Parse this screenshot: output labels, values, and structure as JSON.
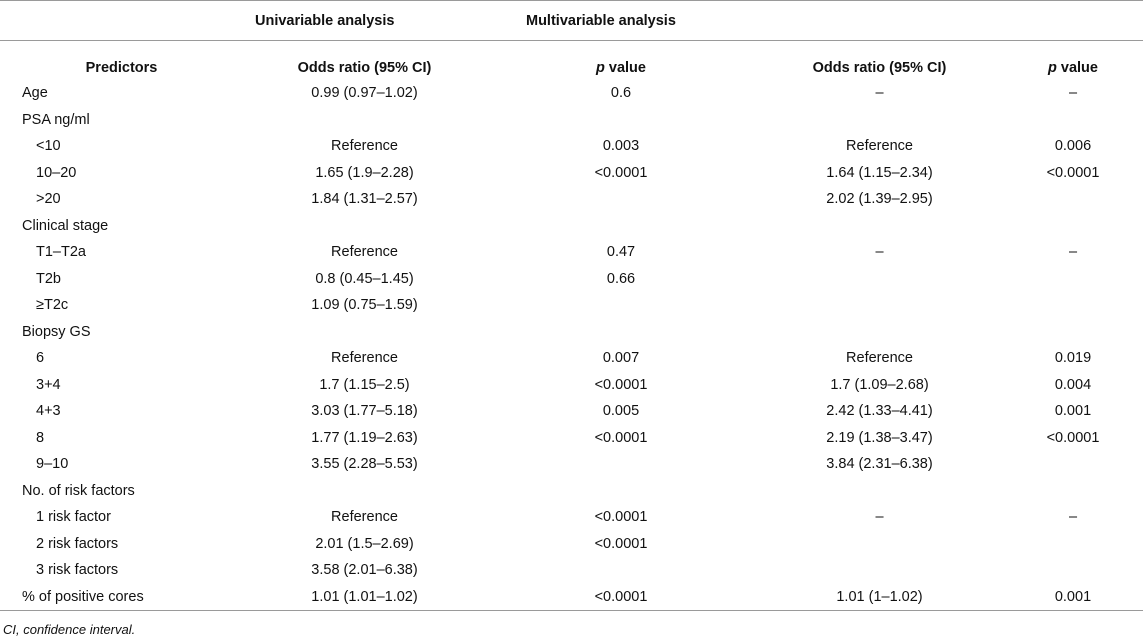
{
  "header": {
    "group1": "Univariable analysis",
    "group2": "Multivariable analysis",
    "col0": "Predictors",
    "col1": "Odds ratio (95% CI)",
    "col2_p": "p",
    "col2_rest": " value",
    "col3": "Odds ratio (95% CI)",
    "col4_p": "p",
    "col4_rest": " value"
  },
  "rows": [
    {
      "predictor": "Age",
      "indent": false,
      "uni_or": "0.99 (0.97–1.02)",
      "uni_p": "0.6",
      "multi_or": "–",
      "multi_p": "–"
    },
    {
      "predictor": "PSA ng/ml",
      "indent": false,
      "uni_or": "",
      "uni_p": "",
      "multi_or": "",
      "multi_p": ""
    },
    {
      "predictor": "<10",
      "indent": true,
      "uni_or": "Reference",
      "uni_p": "0.003",
      "multi_or": "Reference",
      "multi_p": "0.006"
    },
    {
      "predictor": "10–20",
      "indent": true,
      "uni_or": "1.65 (1.9–2.28)",
      "uni_p": "<0.0001",
      "multi_or": "1.64 (1.15–2.34)",
      "multi_p": "<0.0001"
    },
    {
      "predictor": ">20",
      "indent": true,
      "uni_or": "1.84 (1.31–2.57)",
      "uni_p": "",
      "multi_or": "2.02 (1.39–2.95)",
      "multi_p": ""
    },
    {
      "predictor": "Clinical stage",
      "indent": false,
      "uni_or": "",
      "uni_p": "",
      "multi_or": "",
      "multi_p": ""
    },
    {
      "predictor": "T1–T2a",
      "indent": true,
      "uni_or": "Reference",
      "uni_p": "0.47",
      "multi_or": "–",
      "multi_p": "–"
    },
    {
      "predictor": "T2b",
      "indent": true,
      "uni_or": "0.8 (0.45–1.45)",
      "uni_p": "0.66",
      "multi_or": "",
      "multi_p": ""
    },
    {
      "predictor": "≥T2c",
      "indent": true,
      "uni_or": "1.09 (0.75–1.59)",
      "uni_p": "",
      "multi_or": "",
      "multi_p": ""
    },
    {
      "predictor": "Biopsy GS",
      "indent": false,
      "uni_or": "",
      "uni_p": "",
      "multi_or": "",
      "multi_p": ""
    },
    {
      "predictor": "6",
      "indent": true,
      "uni_or": "Reference",
      "uni_p": "0.007",
      "multi_or": "Reference",
      "multi_p": "0.019"
    },
    {
      "predictor": "3+4",
      "indent": true,
      "uni_or": "1.7 (1.15–2.5)",
      "uni_p": "<0.0001",
      "multi_or": "1.7 (1.09–2.68)",
      "multi_p": "0.004"
    },
    {
      "predictor": "4+3",
      "indent": true,
      "uni_or": "3.03 (1.77–5.18)",
      "uni_p": "0.005",
      "multi_or": "2.42 (1.33–4.41)",
      "multi_p": "0.001"
    },
    {
      "predictor": "8",
      "indent": true,
      "uni_or": "1.77 (1.19–2.63)",
      "uni_p": "<0.0001",
      "multi_or": "2.19 (1.38–3.47)",
      "multi_p": "<0.0001"
    },
    {
      "predictor": "9–10",
      "indent": true,
      "uni_or": "3.55 (2.28–5.53)",
      "uni_p": "",
      "multi_or": "3.84 (2.31–6.38)",
      "multi_p": ""
    },
    {
      "predictor": "No. of risk factors",
      "indent": false,
      "uni_or": "",
      "uni_p": "",
      "multi_or": "",
      "multi_p": ""
    },
    {
      "predictor": "1 risk factor",
      "indent": true,
      "uni_or": "Reference",
      "uni_p": "<0.0001",
      "multi_or": "–",
      "multi_p": "–"
    },
    {
      "predictor": "2 risk factors",
      "indent": true,
      "uni_or": "2.01 (1.5–2.69)",
      "uni_p": "<0.0001",
      "multi_or": "",
      "multi_p": ""
    },
    {
      "predictor": "3 risk factors",
      "indent": true,
      "uni_or": "3.58 (2.01–6.38)",
      "uni_p": "",
      "multi_or": "",
      "multi_p": ""
    },
    {
      "predictor": "% of positive cores",
      "indent": false,
      "uni_or": "1.01 (1.01–1.02)",
      "uni_p": "<0.0001",
      "multi_or": "1.01 (1–1.02)",
      "multi_p": "0.001"
    }
  ],
  "footnote": "CI, confidence interval."
}
